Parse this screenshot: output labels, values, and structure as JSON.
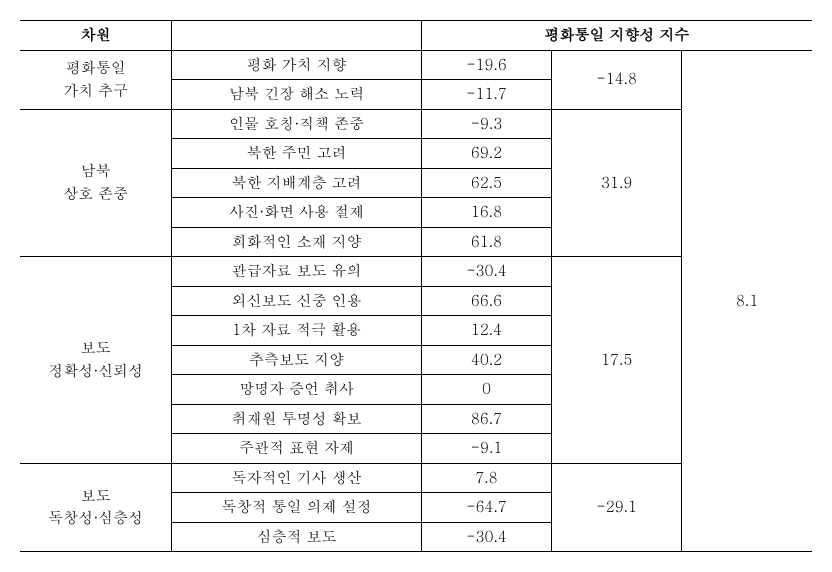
{
  "header": {
    "dimension": "차원",
    "blank": "",
    "index_title": "평화통일 지향성 지수"
  },
  "overall": "8.1",
  "groups": [
    {
      "name": "평화통일\n가치 추구",
      "score": "-14.8",
      "items": [
        {
          "label": "평화 가치 지향",
          "value": "-19.6"
        },
        {
          "label": "남북 긴장 해소 노력",
          "value": "-11.7"
        }
      ]
    },
    {
      "name": "남북\n상호 존중",
      "score": "31.9",
      "items": [
        {
          "label": "인물 호칭·직책 존중",
          "value": "-9.3"
        },
        {
          "label": "북한 주민 고려",
          "value": "69.2"
        },
        {
          "label": "북한 지배계층 고려",
          "value": "62.5"
        },
        {
          "label": "사진·화면 사용 절제",
          "value": "16.8"
        },
        {
          "label": "희화적인 소재 지양",
          "value": "61.8"
        }
      ]
    },
    {
      "name": "보도\n정확성·신뢰성",
      "score": "17.5",
      "items": [
        {
          "label": "관급자료 보도 유의",
          "value": "-30.4"
        },
        {
          "label": "외신보도 신중 인용",
          "value": "66.6"
        },
        {
          "label": "1차 자료 적극 활용",
          "value": "12.4"
        },
        {
          "label": "추측보도 지양",
          "value": "40.2"
        },
        {
          "label": "망명자 증언 취사",
          "value": "0"
        },
        {
          "label": "취재원 투명성 확보",
          "value": "86.7"
        },
        {
          "label": "주관적 표현 자제",
          "value": "-9.1"
        }
      ]
    },
    {
      "name": "보도\n독창성·심층성",
      "score": "-29.1",
      "items": [
        {
          "label": "독자적인 기사 생산",
          "value": "7.8"
        },
        {
          "label": "독창적 통일 의제 설정",
          "value": "-64.7"
        },
        {
          "label": "심층적 보도",
          "value": "-30.4"
        }
      ]
    }
  ]
}
